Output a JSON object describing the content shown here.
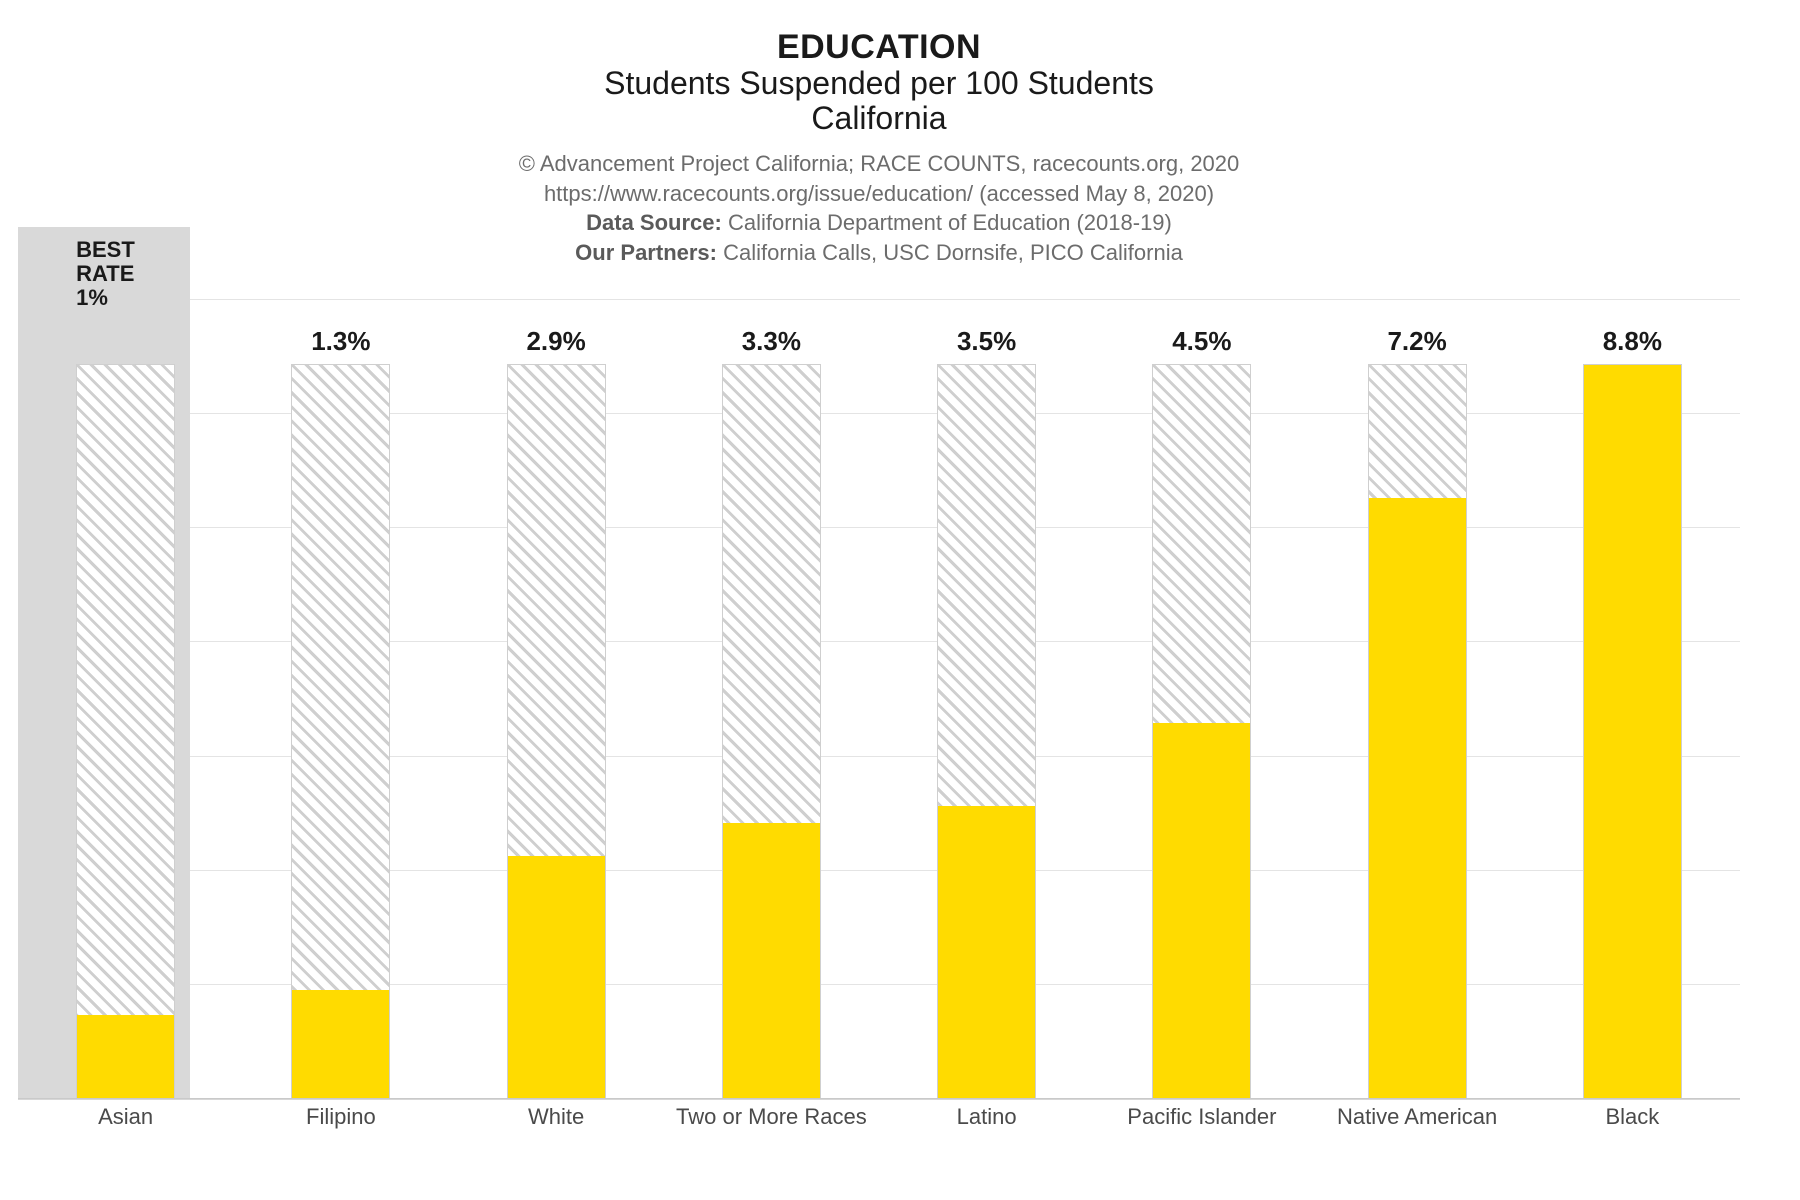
{
  "header": {
    "line1": "EDUCATION",
    "line2": "Students Suspended per 100 Students",
    "line3": "California"
  },
  "credits": {
    "line1": "© Advancement Project California; RACE COUNTS, racecounts.org, 2020",
    "line2": "https://www.racecounts.org/issue/education/ (accessed May 8, 2020)",
    "line3_label": "Data Source:",
    "line3_rest": " California Department of Education (2018-19)",
    "line4_label": "Our Partners:",
    "line4_rest": " California Calls, USC Dornsife, PICO California"
  },
  "chart": {
    "type": "bar",
    "best_rate_label_line1": "BEST",
    "best_rate_label_line2": "RATE",
    "best_rate_label_line3": "1%",
    "bar_fill_color": "#ffdb00",
    "hatch_color": "#cfcfcf",
    "hatch_bg": "#ffffff",
    "grid_color": "#e4e4e4",
    "highlight_bg": "#d9d9d9",
    "axis_color": "#c9c9c9",
    "value_fontsize": 26,
    "xlabel_fontsize": 22,
    "title_fontsize": 34,
    "subtitle_fontsize": 32,
    "grid_count": 7,
    "bar_width_pct": 46,
    "bar_outer_height_pct": 92,
    "ylim_max": 8.8,
    "categories": [
      {
        "name": "Asian",
        "value": 1.0,
        "label": "",
        "highlighted": true
      },
      {
        "name": "Filipino",
        "value": 1.3,
        "label": "1.3%",
        "highlighted": false
      },
      {
        "name": "White",
        "value": 2.9,
        "label": "2.9%",
        "highlighted": false
      },
      {
        "name": "Two or More Races",
        "value": 3.3,
        "label": "3.3%",
        "highlighted": false
      },
      {
        "name": "Latino",
        "value": 3.5,
        "label": "3.5%",
        "highlighted": false
      },
      {
        "name": "Pacific Islander",
        "value": 4.5,
        "label": "4.5%",
        "highlighted": false
      },
      {
        "name": "Native American",
        "value": 7.2,
        "label": "7.2%",
        "highlighted": false
      },
      {
        "name": "Black",
        "value": 8.8,
        "label": "8.8%",
        "highlighted": false
      }
    ]
  }
}
